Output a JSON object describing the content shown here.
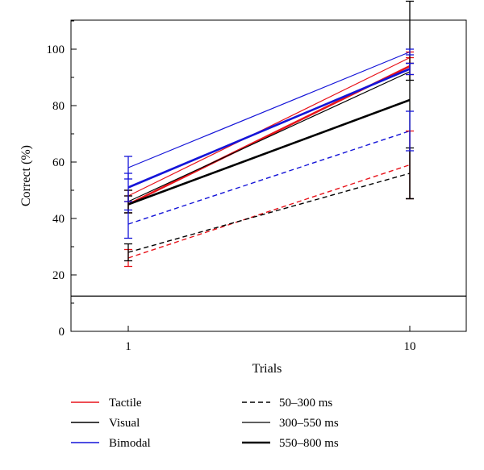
{
  "chart_data": {
    "type": "line",
    "title": "",
    "xlabel": "Trials",
    "ylabel": "Correct (%)",
    "categories": [
      "1",
      "10"
    ],
    "ylim": [
      0,
      110
    ],
    "yticks": [
      0,
      20,
      40,
      60,
      80,
      100
    ],
    "reference_line": 12.5,
    "grid": false,
    "colors": {
      "Tactile": "#e8141b",
      "Visual": "#000000",
      "Bimodal": "#1414d8"
    },
    "modality_legend": [
      {
        "label": "Tactile",
        "color": "#e8141b"
      },
      {
        "label": "Visual",
        "color": "#000000"
      },
      {
        "label": "Bimodal",
        "color": "#1414d8"
      }
    ],
    "duration_legend": [
      {
        "label": "50–300 ms",
        "style": "dashed"
      },
      {
        "label": "300–550 ms",
        "style": "thin"
      },
      {
        "label": "550–800 ms",
        "style": "thick"
      }
    ],
    "series": [
      {
        "modality": "Tactile",
        "duration": "50–300 ms",
        "values": [
          26,
          59
        ],
        "errors": [
          3,
          12
        ]
      },
      {
        "modality": "Tactile",
        "duration": "300–550 ms",
        "values": [
          48,
          97
        ],
        "errors": [
          2,
          2
        ]
      },
      {
        "modality": "Tactile",
        "duration": "550–800 ms",
        "values": [
          45,
          94
        ],
        "errors": [
          3,
          3
        ]
      },
      {
        "modality": "Visual",
        "duration": "50–300 ms",
        "values": [
          28,
          56
        ],
        "errors": [
          3,
          9
        ]
      },
      {
        "modality": "Visual",
        "duration": "300–550 ms",
        "values": [
          46,
          92
        ],
        "errors": [
          4,
          3
        ]
      },
      {
        "modality": "Visual",
        "duration": "550–800 ms",
        "values": [
          45,
          82
        ],
        "errors": [
          3,
          35
        ]
      },
      {
        "modality": "Bimodal",
        "duration": "50–300 ms",
        "values": [
          38,
          71
        ],
        "errors": [
          5,
          7
        ]
      },
      {
        "modality": "Bimodal",
        "duration": "300–550 ms",
        "values": [
          58,
          99
        ],
        "errors": [
          4,
          1
        ]
      },
      {
        "modality": "Bimodal",
        "duration": "550–800 ms",
        "values": [
          51,
          93
        ],
        "errors": [
          5,
          2
        ]
      }
    ]
  }
}
